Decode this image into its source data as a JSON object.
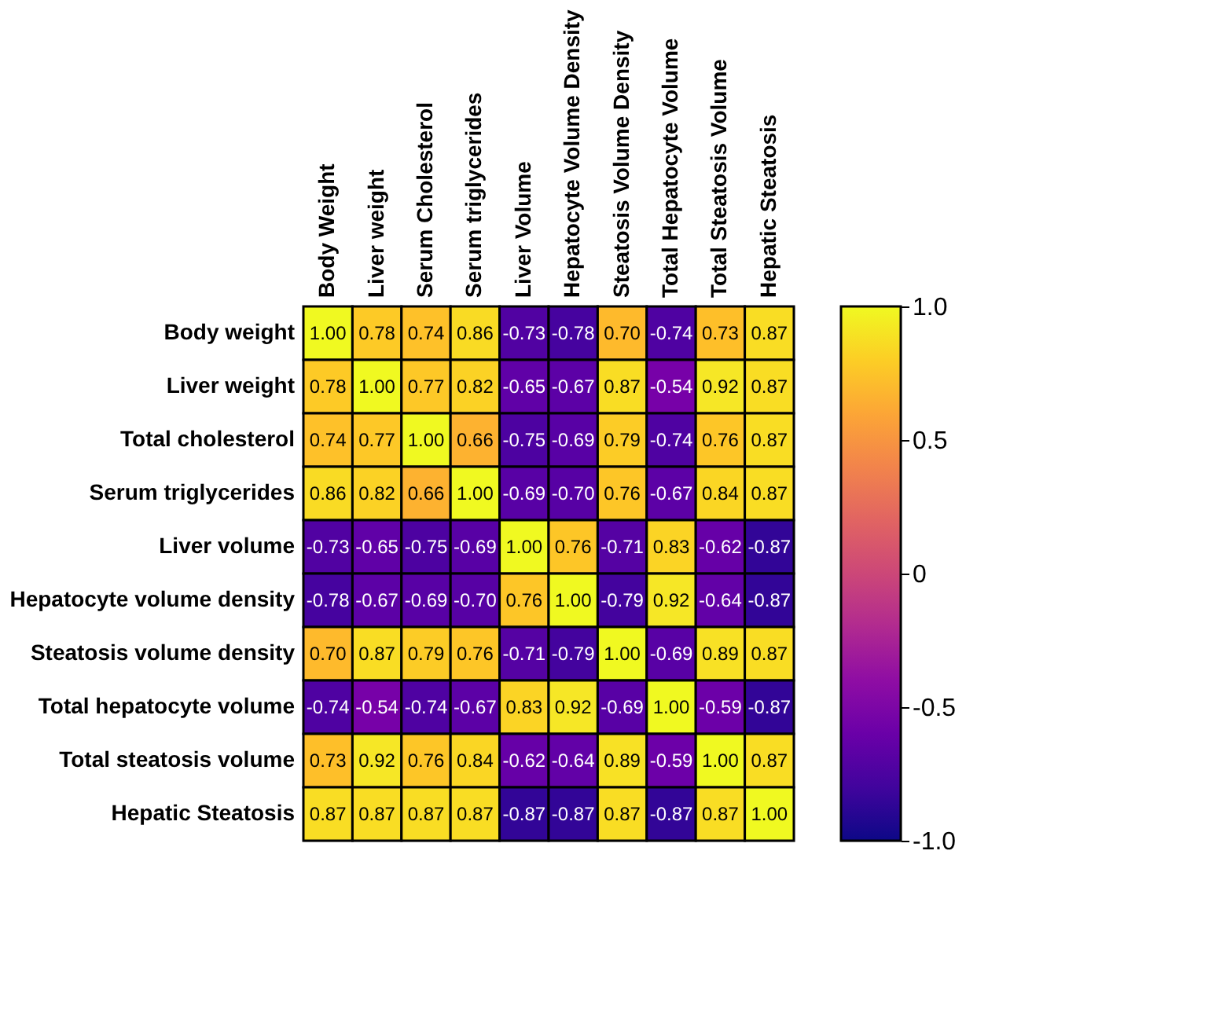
{
  "chart_data": {
    "type": "heatmap",
    "categories": [
      "Body Weight",
      "Liver weight",
      "Serum Cholesterol",
      "Serum triglycerides",
      "Liver Volume",
      "Hepatocyte Volume Density",
      "Steatosis Volume Density",
      "Total Hepatocyte Volume",
      "Total Steatosis Volume",
      "Hepatic Steatosis"
    ],
    "y_categories": [
      "Body weight",
      "Liver weight",
      "Total cholesterol",
      "Serum triglycerides",
      "Liver volume",
      "Hepatocyte volume density",
      "Steatosis volume density",
      "Total hepatocyte volume",
      "Total steatosis volume",
      "Hepatic Steatosis"
    ],
    "cells": [
      [
        1.0,
        0.78,
        0.74,
        0.86,
        -0.73,
        -0.78,
        0.7,
        -0.74,
        0.73,
        0.87
      ],
      [
        0.78,
        1.0,
        0.77,
        0.82,
        -0.65,
        -0.67,
        0.87,
        -0.54,
        0.92,
        0.87
      ],
      [
        0.74,
        0.77,
        1.0,
        0.66,
        -0.75,
        -0.69,
        0.79,
        -0.74,
        0.76,
        0.87
      ],
      [
        0.86,
        0.82,
        0.66,
        1.0,
        -0.69,
        -0.7,
        0.76,
        -0.67,
        0.84,
        0.87
      ],
      [
        -0.73,
        -0.65,
        -0.75,
        -0.69,
        1.0,
        0.76,
        -0.71,
        0.83,
        -0.62,
        -0.87
      ],
      [
        -0.78,
        -0.67,
        -0.69,
        -0.7,
        0.76,
        1.0,
        -0.79,
        0.92,
        -0.64,
        -0.87
      ],
      [
        0.7,
        0.87,
        0.79,
        0.76,
        -0.71,
        -0.79,
        1.0,
        -0.69,
        0.89,
        0.87
      ],
      [
        -0.74,
        -0.54,
        -0.74,
        -0.67,
        0.83,
        0.92,
        -0.69,
        1.0,
        -0.59,
        -0.87
      ],
      [
        0.73,
        0.92,
        0.76,
        0.84,
        -0.62,
        -0.64,
        0.89,
        -0.59,
        1.0,
        0.87
      ],
      [
        0.87,
        0.87,
        0.87,
        0.87,
        -0.87,
        -0.87,
        0.87,
        -0.87,
        0.87,
        1.0
      ]
    ],
    "cell_labels": [
      [
        "1.00",
        "0.78",
        "0.74",
        "0.86",
        "-0.73",
        "-0.78",
        "0.70",
        "-0.74",
        "0.73",
        "0.87"
      ],
      [
        "0.78",
        "1.00",
        "0.77",
        "0.82",
        "-0.65",
        "-0.67",
        "0.87",
        "-0.54",
        "0.92",
        "0.87"
      ],
      [
        "0.74",
        "0.77",
        "1.00",
        "0.66",
        "-0.75",
        "-0.69",
        "0.79",
        "-0.74",
        "0.76",
        "0.87"
      ],
      [
        "0.86",
        "0.82",
        "0.66",
        "1.00",
        "-0.69",
        "-0.70",
        "0.76",
        "-0.67",
        "0.84",
        "0.87"
      ],
      [
        "-0.73",
        "-0.65",
        "-0.75",
        "-0.69",
        "1.00",
        "0.76",
        "-0.71",
        "0.83",
        "-0.62",
        "-0.87"
      ],
      [
        "-0.78",
        "-0.67",
        "-0.69",
        "-0.70",
        "0.76",
        "1.00",
        "-0.79",
        "0.92",
        "-0.64",
        "-0.87"
      ],
      [
        "0.70",
        "0.87",
        "0.79",
        "0.76",
        "-0.71",
        "-0.79",
        "1.00",
        "-0.69",
        "0.89",
        "0.87"
      ],
      [
        "-0.74",
        "-0.54",
        "-0.74",
        "-0.67",
        "0.83",
        "0.92",
        "-0.69",
        "1.00",
        "-0.59",
        "-0.87"
      ],
      [
        "0.73",
        "0.92",
        "0.76",
        "0.84",
        "-0.62",
        "-0.64",
        "0.89",
        "-0.59",
        "1.00",
        "0.87"
      ],
      [
        "0.87",
        "0.87",
        "0.87",
        "0.87",
        "-0.87",
        "-0.87",
        "0.87",
        "-0.87",
        "0.87",
        "1.00"
      ]
    ],
    "clim": [
      -1.0,
      1.0
    ],
    "cticks": [
      {
        "value": 1,
        "label": "1.0"
      },
      {
        "value": 0.5,
        "label": "0.5"
      },
      0,
      {
        "value": -0.5,
        "label": "-0.5"
      },
      {
        "value": -1,
        "label": "-1.0"
      }
    ]
  }
}
